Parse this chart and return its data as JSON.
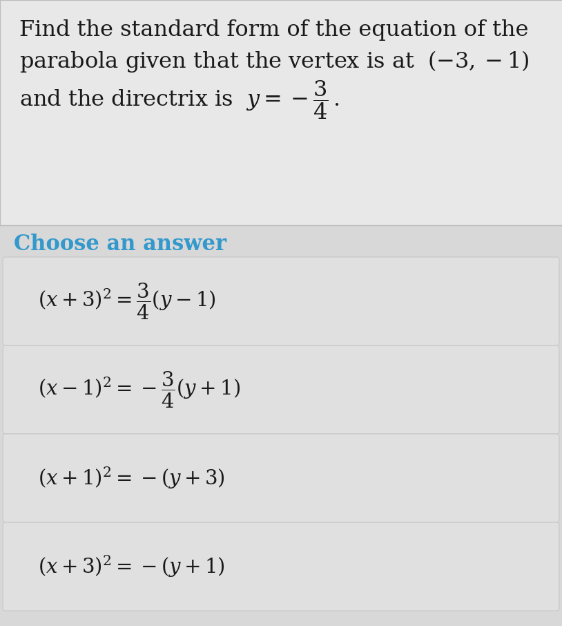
{
  "background_color": "#d8d8d8",
  "question_bg": "#e8e8e8",
  "card_bg": "#e0e0e0",
  "card_border": "#c8c8c8",
  "question_text_color": "#1a1a1a",
  "choose_color": "#3399cc",
  "answer_text_color": "#1a1a1a",
  "choose_label": "Choose an answer",
  "fontsize_question": 23,
  "fontsize_choose": 22,
  "fontsize_answer": 21,
  "fig_width": 8.14,
  "fig_height": 9.06,
  "dpi": 100
}
